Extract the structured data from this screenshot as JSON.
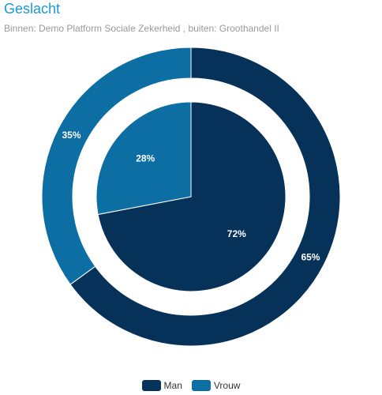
{
  "chart_data": {
    "type": "pie",
    "title": "Geslacht",
    "subtitle": "Binnen: Demo Platform Sociale Zekerheid , buiten: Groothandel II",
    "categories": [
      "Man",
      "Vrouw"
    ],
    "series": [
      {
        "name": "Demo Platform Sociale Zekerheid",
        "ring": "inner",
        "values": [
          72,
          28
        ],
        "labels": [
          "72%",
          "28%"
        ]
      },
      {
        "name": "Groothandel II",
        "ring": "outer",
        "values": [
          65,
          35
        ],
        "labels": [
          "65%",
          "35%"
        ]
      }
    ],
    "colors": {
      "Man": "#06325a",
      "Vrouw": "#0c6ea3"
    },
    "legend": {
      "position": "bottom-center",
      "items": [
        "Man",
        "Vrouw"
      ]
    }
  }
}
